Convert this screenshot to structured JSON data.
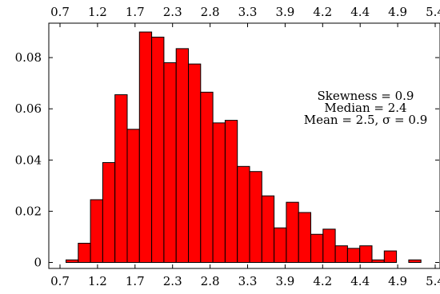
{
  "chart_data": {
    "type": "bar",
    "title": "",
    "xlabel": "",
    "ylabel": "",
    "colors": {
      "bar_fill": "#ff0000",
      "bar_stroke": "#000000"
    },
    "x_tick_labels": [
      "0.7",
      "1.2",
      "1.7",
      "2.3",
      "2.8",
      "3.3",
      "3.9",
      "4.2",
      "4.4",
      "4.9",
      "5.4"
    ],
    "y_tick_labels": [
      "0",
      "0.02",
      "0.04",
      "0.06",
      "0.08"
    ],
    "y_ticks": [
      0,
      0.02,
      0.04,
      0.06,
      0.08
    ],
    "ylim": [
      0,
      0.093
    ],
    "values": [
      0.001,
      0.0075,
      0.0245,
      0.039,
      0.0655,
      0.052,
      0.09,
      0.088,
      0.078,
      0.0835,
      0.0775,
      0.0665,
      0.0545,
      0.0555,
      0.0375,
      0.0355,
      0.026,
      0.0135,
      0.0235,
      0.0195,
      0.011,
      0.013,
      0.0065,
      0.0055,
      0.0065,
      0.001,
      0.0045,
      0,
      0.001,
      0
    ],
    "annotations": [
      "Skewness = 0.9",
      "Median = 2.4",
      "Mean = 2.5, σ = 0.9"
    ],
    "grid": false,
    "legend": "none"
  }
}
